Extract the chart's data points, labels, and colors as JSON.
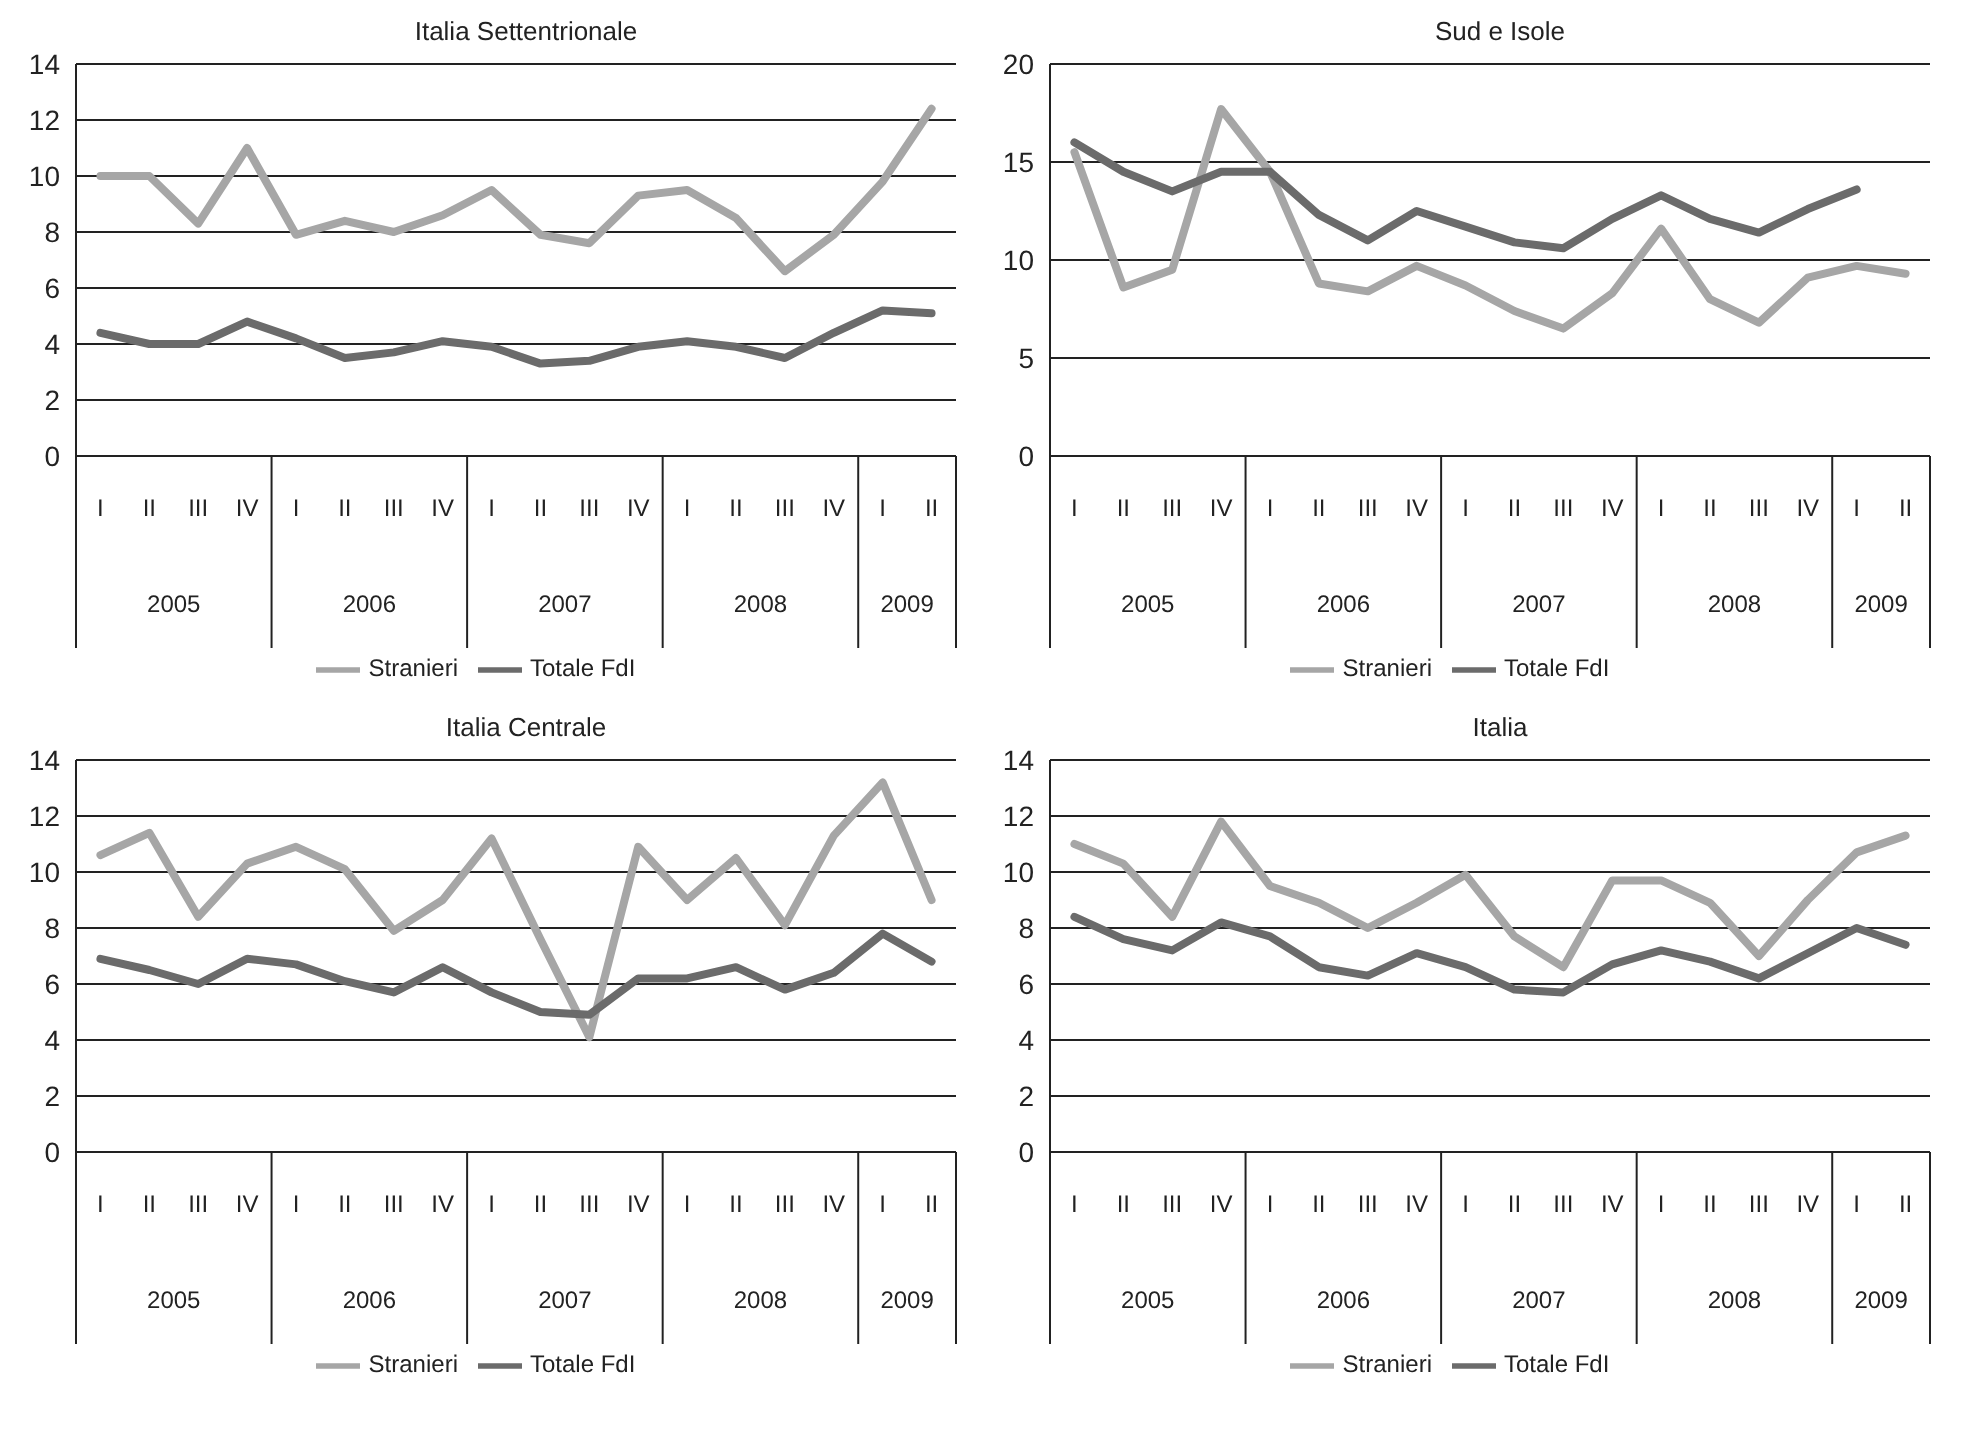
{
  "chart_data": [
    {
      "type": "line",
      "title": "Italia Settentrionale",
      "categories": [
        "I",
        "II",
        "III",
        "IV",
        "I",
        "II",
        "III",
        "IV",
        "I",
        "II",
        "III",
        "IV",
        "I",
        "II",
        "III",
        "IV",
        "I",
        "II"
      ],
      "annotations": [
        "2005",
        "2006",
        "2007",
        "2008",
        "2009"
      ],
      "ylim": [
        0,
        14
      ],
      "yticks": [
        0,
        2,
        4,
        6,
        8,
        10,
        12,
        14
      ],
      "grid": "y",
      "legend": "bottom",
      "marker": "none",
      "line_style": "solid",
      "series": [
        {
          "name": "Stranieri",
          "color": "#a6a6a6",
          "values": [
            10,
            10,
            8.3,
            11,
            7.9,
            8.4,
            8.0,
            8.6,
            9.5,
            7.9,
            7.6,
            9.3,
            9.5,
            8.5,
            6.6,
            7.9,
            9.8,
            12.4
          ]
        },
        {
          "name": "Totale FdI",
          "color": "#6b6b6b",
          "values": [
            4.4,
            4.0,
            4.0,
            4.8,
            4.2,
            3.5,
            3.7,
            4.1,
            3.9,
            3.3,
            3.4,
            3.9,
            4.1,
            3.9,
            3.5,
            4.4,
            5.2,
            5.1
          ]
        }
      ]
    },
    {
      "type": "line",
      "title": "Sud e Isole",
      "categories": [
        "I",
        "II",
        "III",
        "IV",
        "I",
        "II",
        "III",
        "IV",
        "I",
        "II",
        "III",
        "IV",
        "I",
        "II",
        "III",
        "IV",
        "I",
        "II"
      ],
      "annotations": [
        "2005",
        "2006",
        "2007",
        "2008",
        "2009"
      ],
      "ylim": [
        0,
        20
      ],
      "yticks": [
        0,
        5,
        10,
        15,
        20
      ],
      "grid": "y",
      "legend": "bottom",
      "marker": "none",
      "line_style": "solid",
      "series": [
        {
          "name": "Stranieri",
          "color": "#a6a6a6",
          "values": [
            15.5,
            8.6,
            9.5,
            17.7,
            14.5,
            8.8,
            8.4,
            9.7,
            8.7,
            7.4,
            6.5,
            8.3,
            11.6,
            8.0,
            6.8,
            9.1,
            9.7,
            9.3
          ]
        },
        {
          "name": "Totale FdI",
          "color": "#6b6b6b",
          "values": [
            16,
            14.5,
            13.5,
            14.5,
            14.5,
            12.3,
            11.0,
            12.5,
            11.7,
            10.9,
            10.6,
            12.1,
            13.3,
            12.1,
            11.4,
            12.6,
            13.6,
            null
          ]
        }
      ]
    },
    {
      "type": "line",
      "title": "Italia Centrale",
      "categories": [
        "I",
        "II",
        "III",
        "IV",
        "I",
        "II",
        "III",
        "IV",
        "I",
        "II",
        "III",
        "IV",
        "I",
        "II",
        "III",
        "IV",
        "I",
        "II"
      ],
      "annotations": [
        "2005",
        "2006",
        "2007",
        "2008",
        "2009"
      ],
      "ylim": [
        0,
        14
      ],
      "yticks": [
        0,
        2,
        4,
        6,
        8,
        10,
        12,
        14
      ],
      "grid": "y",
      "legend": "bottom",
      "marker": "none",
      "line_style": "solid",
      "series": [
        {
          "name": "Stranieri",
          "color": "#a6a6a6",
          "values": [
            10.6,
            11.4,
            8.4,
            10.3,
            10.9,
            10.1,
            7.9,
            9.0,
            11.2,
            7.6,
            4.1,
            10.9,
            9.0,
            10.5,
            8.1,
            11.3,
            13.2,
            9.0
          ]
        },
        {
          "name": "Totale FdI",
          "color": "#6b6b6b",
          "values": [
            6.9,
            6.5,
            6.0,
            6.9,
            6.7,
            6.1,
            5.7,
            6.6,
            5.7,
            5.0,
            4.9,
            6.2,
            6.2,
            6.6,
            5.8,
            6.4,
            7.8,
            6.8
          ]
        }
      ]
    },
    {
      "type": "line",
      "title": "Italia",
      "categories": [
        "I",
        "II",
        "III",
        "IV",
        "I",
        "II",
        "III",
        "IV",
        "I",
        "II",
        "III",
        "IV",
        "I",
        "II",
        "III",
        "IV",
        "I",
        "II"
      ],
      "annotations": [
        "2005",
        "2006",
        "2007",
        "2008",
        "2009"
      ],
      "ylim": [
        0,
        14
      ],
      "yticks": [
        0,
        2,
        4,
        6,
        8,
        10,
        12,
        14
      ],
      "grid": "y",
      "legend": "bottom",
      "marker": "none",
      "line_style": "solid",
      "series": [
        {
          "name": "Stranieri",
          "color": "#a6a6a6",
          "values": [
            11.0,
            10.3,
            8.4,
            11.8,
            9.5,
            8.9,
            8.0,
            8.9,
            9.9,
            7.7,
            6.6,
            9.7,
            9.7,
            8.9,
            7.0,
            9.0,
            10.7,
            11.3
          ]
        },
        {
          "name": "Totale FdI",
          "color": "#6b6b6b",
          "values": [
            8.4,
            7.6,
            7.2,
            8.2,
            7.7,
            6.6,
            6.3,
            7.1,
            6.6,
            5.8,
            5.7,
            6.7,
            7.2,
            6.8,
            6.2,
            7.1,
            8.0,
            7.4
          ]
        }
      ]
    }
  ]
}
